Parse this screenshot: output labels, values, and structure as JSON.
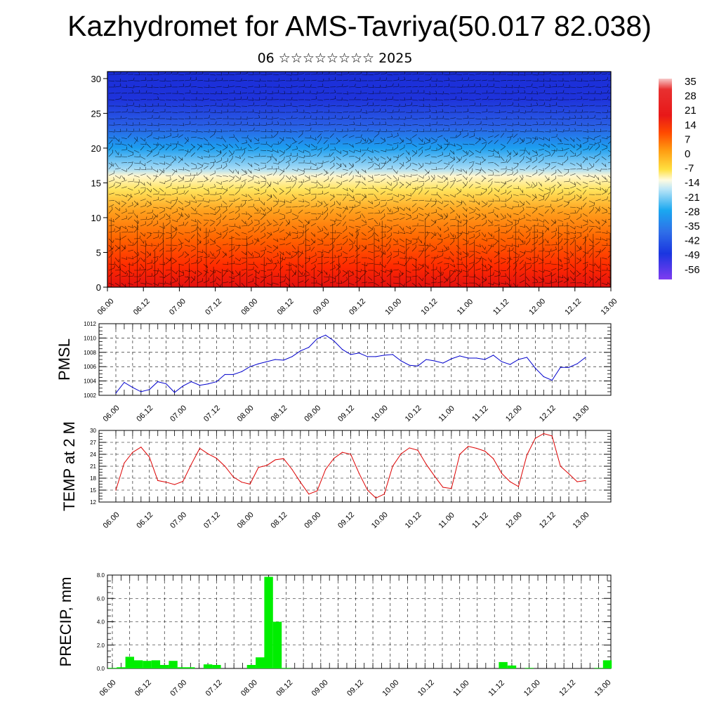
{
  "title": "Kazhydromet for AMS-Tavriya(50.017 82.038)",
  "subtitle": "06 ☆☆☆☆☆☆☆☆ 2025",
  "chart_data": [
    {
      "type": "heatmap",
      "name": "cross-section",
      "x_ticks": [
        "06.00",
        "06.12",
        "07.00",
        "07.12",
        "08.00",
        "08.12",
        "09.00",
        "09.12",
        "10.00",
        "10.12",
        "11.00",
        "11.12",
        "12.00",
        "12.12",
        "13.00"
      ],
      "y_ticks": [
        0,
        5,
        10,
        15,
        20,
        25,
        30
      ],
      "ylim": [
        0,
        31
      ],
      "colorbar": {
        "labels": [
          "35",
          "28",
          "21",
          "14",
          "7",
          "0",
          "-7",
          "-14",
          "-21",
          "-28",
          "-35",
          "-42",
          "-49",
          "-56"
        ],
        "stops": [
          {
            "v": 35,
            "color": "#f7c8c8"
          },
          {
            "v": 30,
            "color": "#e83030"
          },
          {
            "v": 18,
            "color": "#e81818"
          },
          {
            "v": 10,
            "color": "#ff4a00"
          },
          {
            "v": 2,
            "color": "#ff9a10"
          },
          {
            "v": -7,
            "color": "#ffe040"
          },
          {
            "v": -12,
            "color": "#fffbe0"
          },
          {
            "v": -16,
            "color": "#bfe7f7"
          },
          {
            "v": -26,
            "color": "#1aa7f0"
          },
          {
            "v": -36,
            "color": "#2f6fe8"
          },
          {
            "v": -46,
            "color": "#1a35e0"
          },
          {
            "v": -58,
            "color": "#7e3cf0"
          }
        ]
      }
    },
    {
      "type": "line",
      "name": "pmsl",
      "ylabel": "PMSL",
      "color": "#0000cc",
      "x_ticks": [
        "06.00",
        "06.12",
        "07.00",
        "07.12",
        "08.00",
        "08.12",
        "09.00",
        "09.12",
        "10.00",
        "10.12",
        "11.00",
        "11.12",
        "12.00",
        "12.12",
        "13.00"
      ],
      "y_ticks": [
        1002,
        1004,
        1006,
        1008,
        1010,
        1012
      ],
      "ylim": [
        1002,
        1012
      ],
      "values": [
        1002.3,
        1003.8,
        1003.1,
        1002.5,
        1002.8,
        1003.9,
        1003.6,
        1002.4,
        1003.3,
        1003.9,
        1003.4,
        1003.6,
        1003.9,
        1004.9,
        1004.9,
        1005.3,
        1006.0,
        1006.4,
        1006.7,
        1007.0,
        1006.9,
        1007.4,
        1008.2,
        1008.7,
        1009.9,
        1010.4,
        1009.6,
        1008.4,
        1007.7,
        1007.9,
        1007.4,
        1007.4,
        1007.6,
        1007.7,
        1006.8,
        1006.2,
        1006.1,
        1007.0,
        1006.8,
        1006.5,
        1007.1,
        1007.5,
        1007.2,
        1007.2,
        1007.0,
        1007.6,
        1006.7,
        1006.3,
        1007.0,
        1007.3,
        1005.8,
        1004.6,
        1004.1,
        1005.9,
        1005.9,
        1006.4,
        1007.3
      ]
    },
    {
      "type": "line",
      "name": "temp",
      "ylabel": "TEMP at 2 M",
      "color": "#dd0000",
      "x_ticks": [
        "06.00",
        "06.12",
        "07.00",
        "07.12",
        "08.00",
        "08.12",
        "09.00",
        "09.12",
        "10.00",
        "10.12",
        "11.00",
        "11.12",
        "12.00",
        "12.12",
        "13.00"
      ],
      "y_ticks": [
        12,
        15,
        18,
        21,
        24,
        27,
        30
      ],
      "ylim": [
        12,
        30
      ],
      "values": [
        15.0,
        21.8,
        24.5,
        25.8,
        23.3,
        17.4,
        17.0,
        16.4,
        17.2,
        21.5,
        25.5,
        24.1,
        23.0,
        21.0,
        18.3,
        17.0,
        16.5,
        20.7,
        21.2,
        22.6,
        22.9,
        20.2,
        17.0,
        14.0,
        14.8,
        20.2,
        23.0,
        24.5,
        24.0,
        19.2,
        15.0,
        13.0,
        14.0,
        21.0,
        24.1,
        25.6,
        25.0,
        21.5,
        18.5,
        15.7,
        15.4,
        24.0,
        26.0,
        25.5,
        24.8,
        22.9,
        19.2,
        17.1,
        15.9,
        23.8,
        28.0,
        29.2,
        28.6,
        21.0,
        19.1,
        17.1,
        17.4
      ]
    },
    {
      "type": "bar",
      "name": "precip",
      "ylabel": "PRECIP, mm",
      "color": "#00ee00",
      "x_ticks": [
        "06.00",
        "06.12",
        "07.00",
        "07.12",
        "08.00",
        "08.12",
        "09.00",
        "09.12",
        "10.00",
        "10.12",
        "11.00",
        "11.12",
        "12.00",
        "12.12",
        "13.00"
      ],
      "y_ticks": [
        "0.0",
        "2.0",
        "4.0",
        "6.0",
        "8.0"
      ],
      "ylim": [
        0,
        8.0
      ],
      "values": [
        0.05,
        0.1,
        1.0,
        0.7,
        0.65,
        0.7,
        0.3,
        0.65,
        0.1,
        0.1,
        0,
        0.35,
        0.3,
        0,
        0,
        0,
        0.3,
        0.95,
        7.85,
        4.0,
        0.05,
        0,
        0,
        0,
        0,
        0,
        0,
        0,
        0,
        0,
        0,
        0,
        0,
        0,
        0,
        0,
        0,
        0,
        0,
        0,
        0,
        0,
        0,
        0,
        0,
        0.55,
        0.25,
        0,
        0.05,
        0,
        0,
        0,
        0,
        0,
        0,
        0,
        0.05,
        0.7
      ]
    }
  ]
}
